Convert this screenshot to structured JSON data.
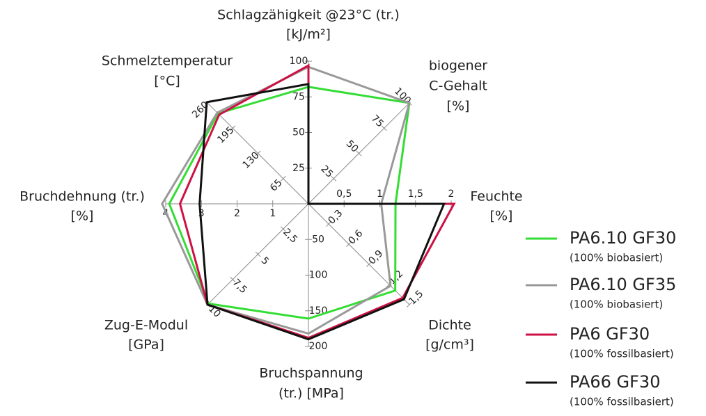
{
  "chart_data": {
    "type": "radar",
    "axes": [
      {
        "label": [
          "Schlagzähigkeit @23°C (tr.)",
          "[kJ/m²]"
        ],
        "range": [
          0,
          100
        ],
        "ticks": [
          25,
          50,
          75,
          100
        ]
      },
      {
        "label": [
          "biogener",
          "C-Gehalt",
          "[%]"
        ],
        "range": [
          0,
          100
        ],
        "ticks": [
          25,
          50,
          75,
          100
        ]
      },
      {
        "label": [
          "Feuchte",
          "[%]"
        ],
        "range": [
          0,
          2
        ],
        "ticks": [
          {
            "value": 0.5,
            "label": "0,5"
          },
          1,
          {
            "value": 1.5,
            "label": "1,5"
          },
          2
        ]
      },
      {
        "label": [
          "Dichte",
          "[g/cm³]"
        ],
        "range": [
          0,
          1.5
        ],
        "ticks": [
          {
            "value": 0.3,
            "label": "0,3"
          },
          {
            "value": 0.6,
            "label": "0,6"
          },
          {
            "value": 0.9,
            "label": "0,9"
          },
          {
            "value": 1.2,
            "label": "1,2"
          },
          {
            "value": 1.5,
            "label": "1,5"
          }
        ]
      },
      {
        "label": [
          "Bruchspannung",
          "(tr.) [MPa]"
        ],
        "range": [
          0,
          200
        ],
        "ticks": [
          50,
          100,
          150,
          200
        ]
      },
      {
        "label": [
          "Zug-E-Modul",
          "[GPa]"
        ],
        "range": [
          0,
          10
        ],
        "ticks": [
          {
            "value": 2.5,
            "label": "2,5"
          },
          5,
          {
            "value": 7.5,
            "label": "7,5"
          },
          10
        ]
      },
      {
        "label": [
          "Bruchdehnung (tr.)",
          "[%]"
        ],
        "range": [
          0,
          4
        ],
        "ticks": [
          1,
          2,
          3,
          4
        ]
      },
      {
        "label": [
          "Schmelztemperatur",
          "[°C]"
        ],
        "range": [
          0,
          260
        ],
        "ticks": [
          65,
          130,
          195,
          260
        ]
      }
    ],
    "series": [
      {
        "name": "PA6.10 GF30",
        "description": "(100% biobasiert)",
        "color": "#33dd33",
        "values": [
          82,
          100,
          1.22,
          1.29,
          161,
          9.9,
          3.9,
          233
        ]
      },
      {
        "name": "PA6.10 GF35",
        "description": "(100% biobasiert)",
        "color": "#999999",
        "values": [
          96,
          100,
          1.02,
          1.22,
          182,
          10,
          4.1,
          235
        ]
      },
      {
        "name": "PA6 GF30",
        "description": "(100% fossilbasiert)",
        "color": "#cc1144",
        "values": [
          97,
          0,
          2.04,
          1.4,
          188,
          10,
          3.6,
          230
        ]
      },
      {
        "name": "PA66 GF30",
        "description": "(100% fossilbasiert)",
        "color": "#111111",
        "values": [
          84,
          0,
          1.9,
          1.42,
          190,
          10,
          3.05,
          262
        ]
      }
    ]
  }
}
